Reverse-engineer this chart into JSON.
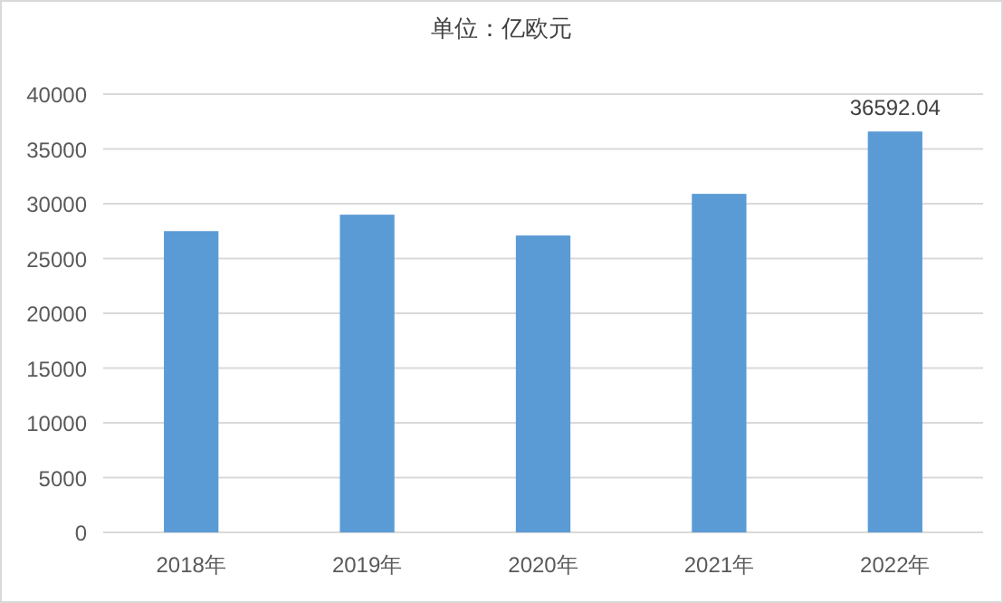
{
  "chart_data": {
    "type": "bar",
    "title": "单位：亿欧元",
    "categories": [
      "2018年",
      "2019年",
      "2020年",
      "2021年",
      "2022年"
    ],
    "values": [
      27500,
      29000,
      27100,
      30900,
      36592.04
    ],
    "value_labels": [
      null,
      null,
      null,
      null,
      "36592.04"
    ],
    "color": "#5b9bd5",
    "ylim": [
      0,
      40000
    ],
    "yticks": [
      0,
      5000,
      10000,
      15000,
      20000,
      25000,
      30000,
      35000,
      40000
    ],
    "grid": "y"
  }
}
